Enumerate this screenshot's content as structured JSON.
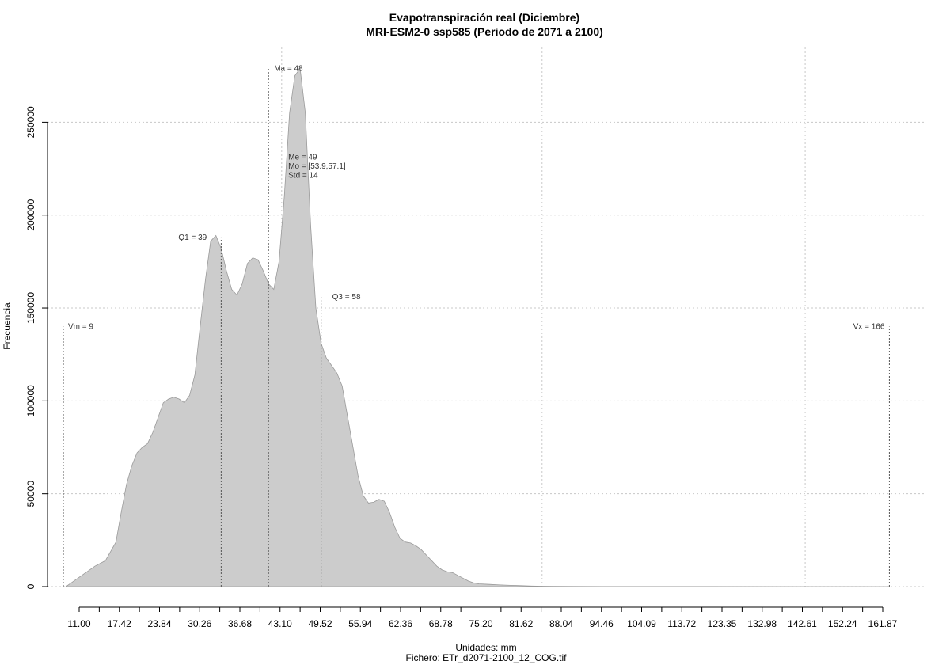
{
  "chart_data": {
    "type": "area",
    "title": "Evapotranspiración real (Diciembre)",
    "subtitle": "MRI-ESM2-0 ssp585 (Periodo de 2071 a 2100)",
    "xlabel": "Unidades: mm",
    "caption": "Fichero: ETr_d2071-2100_12_COG.tif",
    "ylabel": "Frecuencia",
    "xlim": [
      9,
      170
    ],
    "ylim": [
      0,
      280000
    ],
    "grid": true,
    "x_ticks": [
      "11.00",
      "17.42",
      "23.84",
      "30.26",
      "36.68",
      "43.10",
      "49.52",
      "55.94",
      "62.36",
      "68.78",
      "75.20",
      "81.62",
      "88.04",
      "94.46",
      "104.09",
      "113.72",
      "123.35",
      "132.98",
      "142.61",
      "152.24",
      "161.87"
    ],
    "y_ticks": [
      "0",
      "50000",
      "100000",
      "150000",
      "200000",
      "250000"
    ],
    "y_tick_values": [
      0,
      50000,
      100000,
      150000,
      200000,
      250000
    ],
    "x_grid": [
      50.5,
      100,
      150
    ],
    "series": [
      {
        "x": [
          9.5,
          11,
          13,
          15,
          17,
          19,
          20,
          21,
          22,
          23,
          24,
          25,
          26,
          27,
          28,
          29,
          30,
          31,
          32,
          33,
          34,
          35,
          36,
          37,
          38,
          39,
          40,
          41,
          42,
          43,
          44,
          45,
          46,
          47,
          48,
          49,
          50,
          51,
          52,
          53,
          54,
          55,
          56,
          57,
          58,
          59,
          60,
          61,
          62,
          63,
          64,
          65,
          66,
          67,
          68,
          69,
          70,
          71,
          72,
          73,
          74,
          75,
          76,
          77,
          78,
          79,
          80,
          81,
          82,
          83,
          84,
          85,
          86,
          87,
          88,
          90,
          92,
          94,
          96,
          98,
          100,
          102,
          106,
          115,
          130,
          160,
          166
        ],
        "y": [
          0,
          3000,
          7000,
          11000,
          14000,
          24000,
          40000,
          55000,
          65000,
          72000,
          75000,
          77000,
          83000,
          91000,
          99000,
          101000,
          102000,
          101000,
          99000,
          103000,
          114000,
          140000,
          165000,
          186000,
          189000,
          182000,
          170000,
          160000,
          157000,
          163000,
          174000,
          177000,
          176000,
          170000,
          163000,
          160000,
          175000,
          210000,
          255000,
          275000,
          279000,
          255000,
          195000,
          150000,
          131000,
          123000,
          119000,
          115000,
          108000,
          92000,
          76000,
          60000,
          49000,
          45000,
          45500,
          47000,
          46000,
          40000,
          32000,
          26000,
          24000,
          23500,
          22000,
          20000,
          17000,
          14000,
          11000,
          9000,
          8000,
          7500,
          6000,
          4500,
          3000,
          2000,
          1500,
          1200,
          900,
          700,
          500,
          300,
          200,
          150,
          100,
          50,
          20,
          5,
          0
        ]
      }
    ],
    "annotations": [
      {
        "label": "Vm = 9",
        "x": 9,
        "y": 140000
      },
      {
        "label": "Q1 = 39",
        "x": 39,
        "y": 188000
      },
      {
        "label": "Ma = 48",
        "x": 48,
        "y": 279000
      },
      {
        "label": "Q3 = 58",
        "x": 58,
        "y": 156000
      },
      {
        "label": "Vx = 166",
        "x": 166,
        "y": 140000
      }
    ],
    "stats_block": [
      "Me = 49",
      "Mo = [53.9,57.1]",
      "Std = 14"
    ],
    "stats_block_anchor": {
      "x": 51,
      "y": 230000
    },
    "colors": {
      "fill": "#cccccc",
      "outline": "#9a9a9a",
      "grid": "#c8c8c8",
      "stat_line": "#555555"
    }
  }
}
